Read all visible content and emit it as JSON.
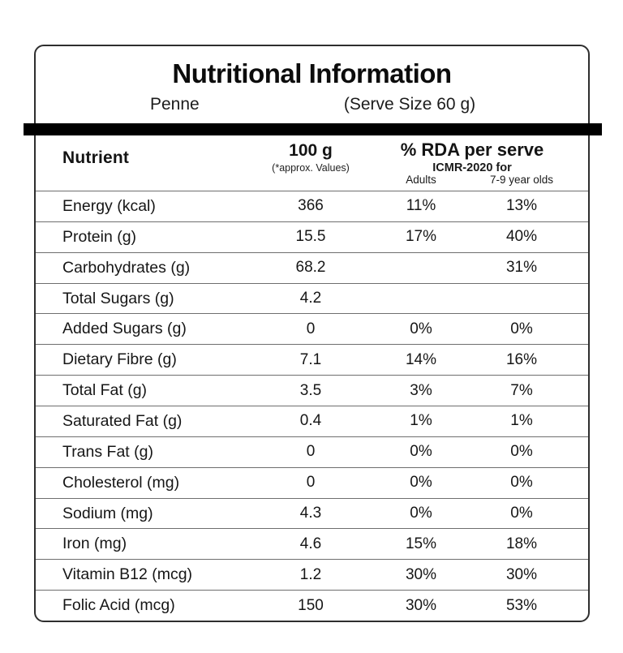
{
  "header": {
    "title": "Nutritional Information",
    "product": "Penne",
    "serve_size": "(Serve Size 60 g)"
  },
  "table": {
    "columns": {
      "nutrient": "Nutrient",
      "per_100g": "100 g",
      "per_100g_note": "(*approx. Values)",
      "rda": "% RDA per serve",
      "rda_note": "ICMR-2020 for",
      "rda_adults": "Adults",
      "rda_kids": "7-9 year olds"
    },
    "rows": [
      {
        "nutrient": "Energy (kcal)",
        "per_100g": "366",
        "adults": "11%",
        "kids": "13%"
      },
      {
        "nutrient": "Protein (g)",
        "per_100g": "15.5",
        "adults": "17%",
        "kids": "40%"
      },
      {
        "nutrient": "Carbohydrates (g)",
        "per_100g": "68.2",
        "adults": "",
        "kids": "31%"
      },
      {
        "nutrient": "Total Sugars (g)",
        "per_100g": "4.2",
        "adults": "",
        "kids": ""
      },
      {
        "nutrient": "Added Sugars (g)",
        "per_100g": "0",
        "adults": "0%",
        "kids": "0%"
      },
      {
        "nutrient": "Dietary Fibre (g)",
        "per_100g": "7.1",
        "adults": "14%",
        "kids": "16%"
      },
      {
        "nutrient": "Total Fat (g)",
        "per_100g": "3.5",
        "adults": "3%",
        "kids": "7%"
      },
      {
        "nutrient": "Saturated Fat (g)",
        "per_100g": "0.4",
        "adults": "1%",
        "kids": "1%"
      },
      {
        "nutrient": "Trans Fat (g)",
        "per_100g": "0",
        "adults": "0%",
        "kids": "0%"
      },
      {
        "nutrient": "Cholesterol (mg)",
        "per_100g": "0",
        "adults": "0%",
        "kids": "0%"
      },
      {
        "nutrient": "Sodium (mg)",
        "per_100g": "4.3",
        "adults": "0%",
        "kids": "0%"
      },
      {
        "nutrient": "Iron (mg)",
        "per_100g": "4.6",
        "adults": "15%",
        "kids": "18%"
      },
      {
        "nutrient": "Vitamin B12 (mcg)",
        "per_100g": "1.2",
        "adults": "30%",
        "kids": "30%"
      },
      {
        "nutrient": "Folic Acid (mcg)",
        "per_100g": "150",
        "adults": "30%",
        "kids": "53%"
      }
    ]
  },
  "colors": {
    "bar": "#000000",
    "card_border": "#2e2e2e",
    "row_separator": "#6e6e6e",
    "text": "#141414"
  }
}
